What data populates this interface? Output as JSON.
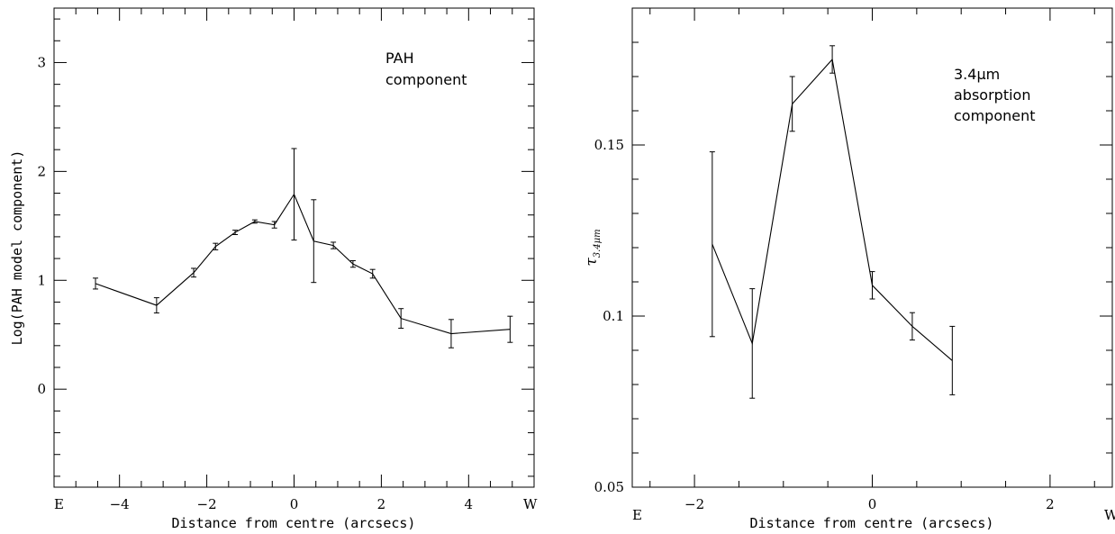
{
  "chart_data": [
    {
      "type": "line",
      "title": "",
      "xlabel": "Distance from centre (arcsecs)",
      "ylabel": "Log(PAH model component)",
      "xlim": [
        -5.5,
        5.5
      ],
      "ylim": [
        -0.9,
        3.5
      ],
      "x_ticks": [
        -4,
        -2,
        0,
        2,
        4
      ],
      "x_tick_labels": [
        "−4",
        "−2",
        "0",
        "2",
        "4"
      ],
      "y_ticks": [
        0,
        1,
        2,
        3
      ],
      "y_tick_labels": [
        "0",
        "1",
        "2",
        "3"
      ],
      "left_end_label": "E",
      "right_end_label": "W",
      "annotation_lines": [
        "PAH",
        "component"
      ],
      "grid": false,
      "series": [
        {
          "x": [
            -4.55,
            -3.15,
            -2.3,
            -1.8,
            -1.35,
            -0.9,
            -0.45,
            0.0,
            0.45,
            0.9,
            1.35,
            1.8,
            2.45,
            3.6,
            4.95
          ],
          "y": [
            0.97,
            0.77,
            1.07,
            1.31,
            1.44,
            1.54,
            1.51,
            1.79,
            1.36,
            1.32,
            1.15,
            1.06,
            0.65,
            0.51,
            0.55
          ],
          "yerr": [
            0.05,
            0.07,
            0.04,
            0.03,
            0.02,
            0.015,
            0.03,
            0.42,
            0.38,
            0.03,
            0.03,
            0.04,
            0.09,
            0.13,
            0.12
          ]
        }
      ]
    },
    {
      "type": "line",
      "title": "",
      "xlabel": "Distance from centre (arcsecs)",
      "ylabel": "τ",
      "ylabel_subscript": "3.4μm",
      "xlim": [
        -2.7,
        2.7
      ],
      "ylim": [
        0.05,
        0.19
      ],
      "x_ticks": [
        -2,
        0,
        2
      ],
      "x_tick_labels": [
        "−2",
        "0",
        "2"
      ],
      "y_ticks": [
        0.05,
        0.1,
        0.15
      ],
      "y_tick_labels": [
        "0.05",
        "0.1",
        "0.15"
      ],
      "left_end_label": "E",
      "right_end_label": "W",
      "annotation_lines": [
        "3.4μm",
        "absorption",
        "component"
      ],
      "grid": false,
      "series": [
        {
          "x": [
            -1.8,
            -1.35,
            -0.9,
            -0.45,
            0.0,
            0.45,
            0.9
          ],
          "y": [
            0.121,
            0.092,
            0.162,
            0.175,
            0.109,
            0.097,
            0.087
          ],
          "yerr": [
            0.027,
            0.016,
            0.008,
            0.004,
            0.004,
            0.004,
            0.01
          ]
        }
      ]
    }
  ]
}
